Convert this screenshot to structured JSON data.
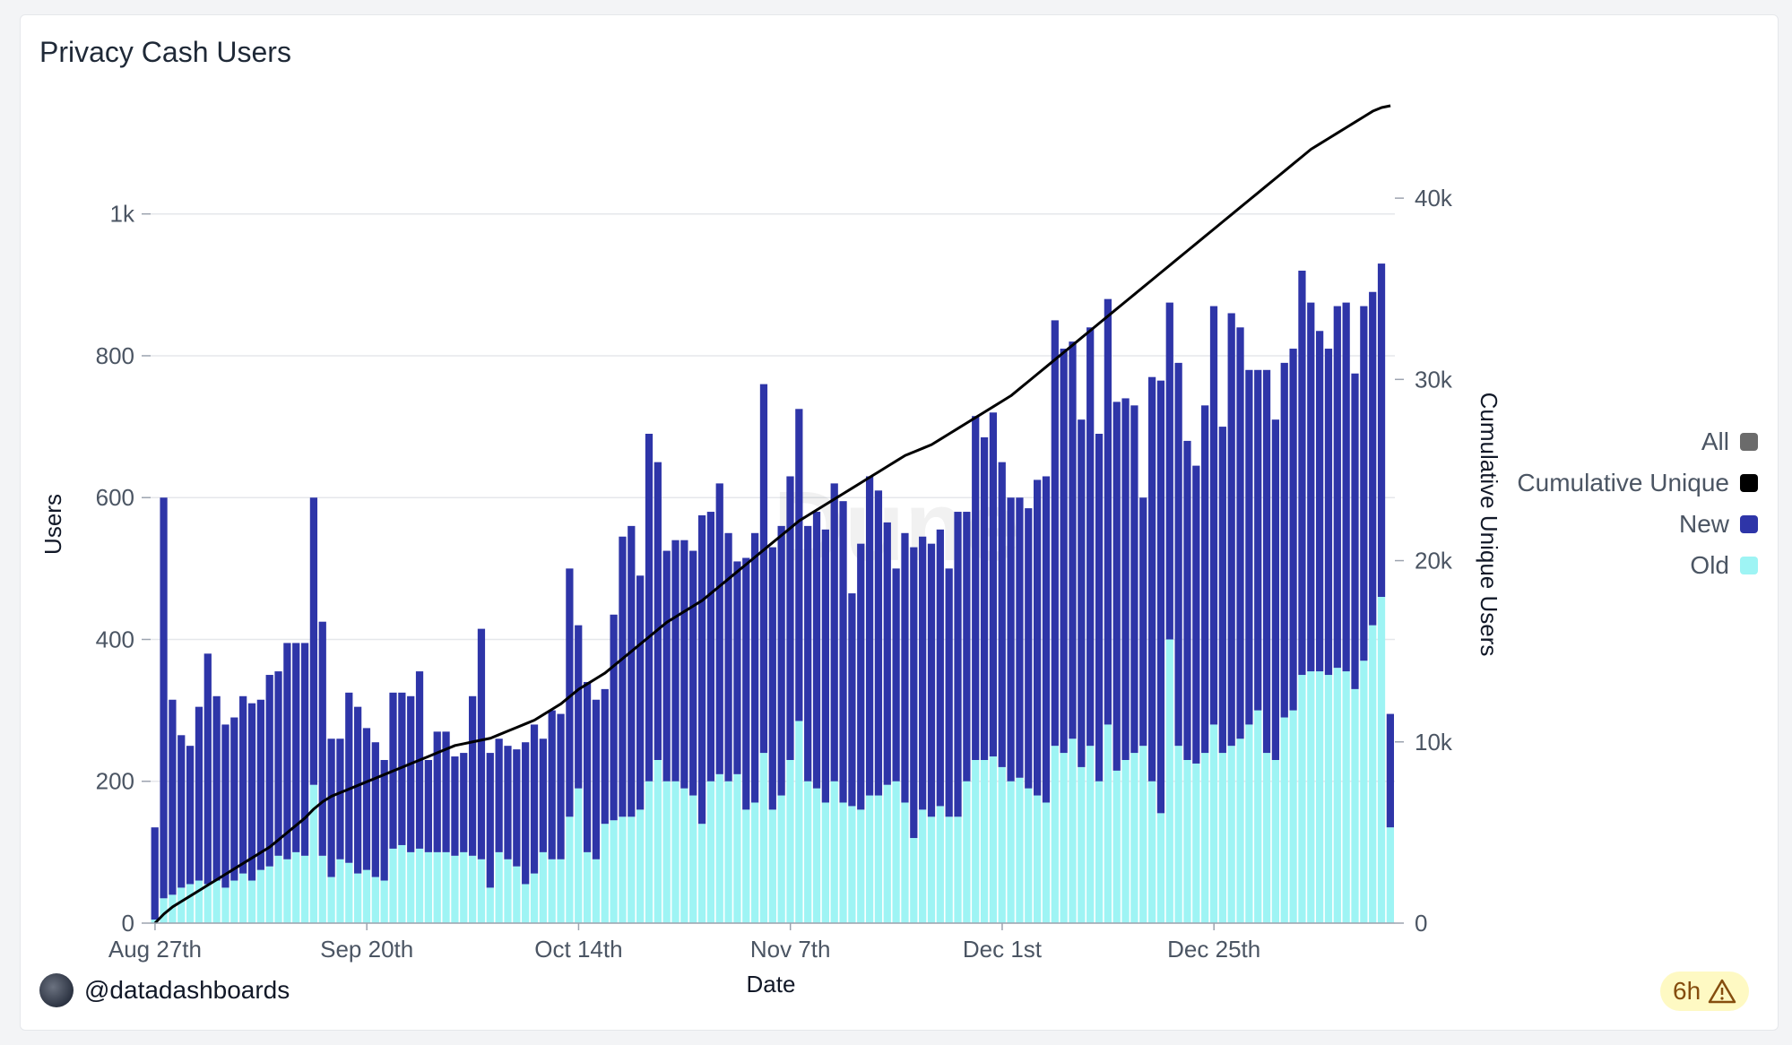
{
  "title": "Privacy Cash Users",
  "credit": {
    "handle": "@datadashboards"
  },
  "freshness": {
    "label": "6h"
  },
  "legend": [
    {
      "label": "All",
      "color": "#6b6b6b"
    },
    {
      "label": "Cumulative Unique",
      "color": "#000000"
    },
    {
      "label": "New",
      "color": "#2e35a8"
    },
    {
      "label": "Old",
      "color": "#9ef4f4"
    }
  ],
  "watermark": "Dune",
  "chart_data": {
    "type": "bar",
    "stacked": true,
    "xlabel": "Date",
    "ylabel": "Users",
    "y2label": "Cumulative Unique Users",
    "ylim": [
      0,
      1150
    ],
    "y2lim": [
      0,
      45000
    ],
    "yticks": [
      0,
      200,
      400,
      600,
      800,
      1000
    ],
    "ytick_labels": [
      "0",
      "200",
      "400",
      "600",
      "800",
      "1k"
    ],
    "y2ticks": [
      0,
      10000,
      20000,
      30000,
      40000
    ],
    "y2tick_labels": [
      "0",
      "10k",
      "20k",
      "30k",
      "40k"
    ],
    "xtick_labels": [
      {
        "index": 0,
        "label": "Aug 27th"
      },
      {
        "index": 24,
        "label": "Sep 20th"
      },
      {
        "index": 48,
        "label": "Oct 14th"
      },
      {
        "index": 72,
        "label": "Nov 7th"
      },
      {
        "index": 96,
        "label": "Dec 1st"
      },
      {
        "index": 120,
        "label": "Dec 25th"
      }
    ],
    "series": [
      {
        "name": "Old",
        "color": "#9ef4f4",
        "values": [
          5,
          35,
          40,
          50,
          55,
          60,
          55,
          60,
          50,
          60,
          70,
          60,
          75,
          80,
          95,
          90,
          100,
          95,
          195,
          95,
          65,
          90,
          85,
          70,
          75,
          65,
          60,
          105,
          110,
          100,
          105,
          100,
          100,
          100,
          95,
          100,
          95,
          90,
          50,
          100,
          90,
          80,
          55,
          70,
          100,
          90,
          90,
          150,
          190,
          100,
          90,
          140,
          145,
          150,
          150,
          160,
          200,
          230,
          200,
          200,
          190,
          180,
          140,
          200,
          210,
          200,
          210,
          160,
          170,
          240,
          160,
          180,
          230,
          285,
          200,
          190,
          170,
          200,
          170,
          165,
          160,
          180,
          180,
          195,
          200,
          170,
          120,
          160,
          150,
          165,
          150,
          150,
          200,
          230,
          230,
          235,
          220,
          200,
          205,
          190,
          180,
          170,
          250,
          240,
          260,
          220,
          250,
          200,
          280,
          215,
          230,
          240,
          250,
          200,
          155,
          400,
          250,
          230,
          225,
          240,
          280,
          240,
          250,
          260,
          280,
          300,
          240,
          230,
          290,
          300,
          350,
          355,
          355,
          350,
          360,
          355,
          330,
          370,
          420,
          460,
          135
        ]
      },
      {
        "name": "New",
        "color": "#2e35a8",
        "values": [
          130,
          565,
          275,
          215,
          195,
          245,
          325,
          260,
          230,
          230,
          250,
          250,
          240,
          270,
          260,
          305,
          295,
          300,
          405,
          330,
          195,
          170,
          240,
          235,
          200,
          190,
          170,
          220,
          215,
          220,
          250,
          130,
          170,
          170,
          140,
          140,
          225,
          325,
          190,
          160,
          160,
          165,
          200,
          210,
          160,
          210,
          205,
          350,
          230,
          240,
          225,
          190,
          290,
          395,
          410,
          330,
          490,
          420,
          325,
          340,
          350,
          345,
          435,
          380,
          410,
          350,
          300,
          355,
          380,
          520,
          370,
          380,
          400,
          440,
          360,
          390,
          385,
          420,
          425,
          300,
          375,
          450,
          430,
          370,
          300,
          380,
          410,
          385,
          385,
          390,
          350,
          430,
          380,
          485,
          455,
          485,
          430,
          400,
          395,
          395,
          445,
          460,
          600,
          570,
          560,
          490,
          590,
          490,
          600,
          520,
          510,
          490,
          350,
          570,
          610,
          475,
          540,
          450,
          420,
          490,
          590,
          460,
          610,
          580,
          500,
          480,
          540,
          480,
          500,
          510,
          570,
          520,
          480,
          460,
          510,
          520,
          445,
          500,
          470,
          470,
          160
        ]
      },
      {
        "name": "Cumulative Unique",
        "type": "line",
        "color": "#000000",
        "values": [
          0,
          500,
          900,
          1200,
          1500,
          1800,
          2100,
          2400,
          2700,
          3000,
          3300,
          3600,
          3900,
          4200,
          4600,
          5000,
          5400,
          5800,
          6300,
          6700,
          7000,
          7200,
          7400,
          7600,
          7800,
          8000,
          8200,
          8400,
          8600,
          8800,
          9000,
          9200,
          9400,
          9600,
          9800,
          9900,
          10000,
          10100,
          10200,
          10400,
          10600,
          10800,
          11000,
          11200,
          11500,
          11800,
          12100,
          12500,
          12900,
          13200,
          13500,
          13800,
          14200,
          14600,
          15000,
          15400,
          15800,
          16200,
          16600,
          16900,
          17200,
          17500,
          17800,
          18200,
          18600,
          19000,
          19400,
          19800,
          20200,
          20600,
          21000,
          21400,
          21800,
          22200,
          22500,
          22800,
          23100,
          23400,
          23700,
          24000,
          24300,
          24600,
          24900,
          25200,
          25500,
          25800,
          26000,
          26200,
          26400,
          26700,
          27000,
          27300,
          27600,
          27900,
          28200,
          28500,
          28800,
          29100,
          29500,
          29900,
          30300,
          30700,
          31100,
          31500,
          31900,
          32300,
          32700,
          33100,
          33500,
          33900,
          34300,
          34700,
          35100,
          35500,
          35900,
          36300,
          36700,
          37100,
          37500,
          37900,
          38300,
          38700,
          39100,
          39500,
          39900,
          40300,
          40700,
          41100,
          41500,
          41900,
          42300,
          42700,
          43000,
          43300,
          43600,
          43900,
          44200,
          44500,
          44800,
          45000,
          45100
        ]
      }
    ]
  }
}
